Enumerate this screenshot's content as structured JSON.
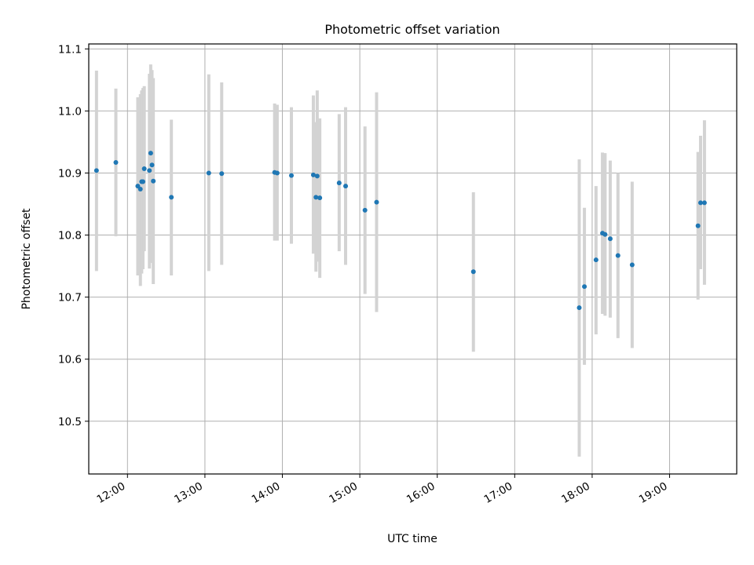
{
  "chart_data": {
    "type": "scatter",
    "title": "Photometric offset variation",
    "xlabel": "UTC time",
    "ylabel": "Photometric offset",
    "grid": true,
    "xlim": [
      "11:30",
      "19:52"
    ],
    "ylim": [
      10.415,
      11.108
    ],
    "x_ticks": [
      "12:00",
      "13:00",
      "14:00",
      "15:00",
      "16:00",
      "17:00",
      "18:00",
      "19:00"
    ],
    "y_ticks": [
      "10.5",
      "10.6",
      "10.7",
      "10.8",
      "10.9",
      "11.0",
      "11.1"
    ],
    "colors": {
      "points": "#1f77b4",
      "error_bars": "#d3d3d3",
      "grid": "#b0b0b0"
    },
    "points": [
      {
        "x": "11:36",
        "y": 10.904,
        "low": 10.742,
        "high": 11.065
      },
      {
        "x": "11:51",
        "y": 10.917,
        "low": 10.798,
        "high": 11.036
      },
      {
        "x": "12:08",
        "y": 10.879,
        "low": 10.735,
        "high": 11.022
      },
      {
        "x": "12:10",
        "y": 10.874,
        "low": 10.718,
        "high": 11.027
      },
      {
        "x": "12:11",
        "y": 10.886,
        "low": 10.738,
        "high": 11.033
      },
      {
        "x": "12:12",
        "y": 10.886,
        "low": 10.745,
        "high": 11.037
      },
      {
        "x": "12:13",
        "y": 10.907,
        "low": 10.774,
        "high": 11.04
      },
      {
        "x": "12:17",
        "y": 10.904,
        "low": 10.746,
        "high": 11.06
      },
      {
        "x": "12:18",
        "y": 10.932,
        "low": 10.79,
        "high": 11.075
      },
      {
        "x": "12:19",
        "y": 10.913,
        "low": 10.755,
        "high": 11.066
      },
      {
        "x": "12:20",
        "y": 10.887,
        "low": 10.721,
        "high": 11.053
      },
      {
        "x": "12:34",
        "y": 10.861,
        "low": 10.735,
        "high": 10.986
      },
      {
        "x": "13:03",
        "y": 10.9,
        "low": 10.742,
        "high": 11.059
      },
      {
        "x": "13:13",
        "y": 10.899,
        "low": 10.752,
        "high": 11.046
      },
      {
        "x": "13:54",
        "y": 10.901,
        "low": 10.791,
        "high": 11.012
      },
      {
        "x": "13:56",
        "y": 10.9,
        "low": 10.791,
        "high": 11.01
      },
      {
        "x": "14:07",
        "y": 10.896,
        "low": 10.786,
        "high": 11.006
      },
      {
        "x": "14:24",
        "y": 10.897,
        "low": 10.77,
        "high": 11.025
      },
      {
        "x": "14:26",
        "y": 10.861,
        "low": 10.741,
        "high": 10.982
      },
      {
        "x": "14:27",
        "y": 10.895,
        "low": 10.757,
        "high": 11.033
      },
      {
        "x": "14:29",
        "y": 10.86,
        "low": 10.731,
        "high": 10.988
      },
      {
        "x": "14:44",
        "y": 10.884,
        "low": 10.774,
        "high": 10.995
      },
      {
        "x": "14:49",
        "y": 10.879,
        "low": 10.752,
        "high": 11.006
      },
      {
        "x": "15:04",
        "y": 10.84,
        "low": 10.705,
        "high": 10.975
      },
      {
        "x": "15:13",
        "y": 10.853,
        "low": 10.676,
        "high": 11.03
      },
      {
        "x": "16:28",
        "y": 10.741,
        "low": 10.612,
        "high": 10.869
      },
      {
        "x": "17:50",
        "y": 10.683,
        "low": 10.443,
        "high": 10.922
      },
      {
        "x": "17:54",
        "y": 10.717,
        "low": 10.591,
        "high": 10.844
      },
      {
        "x": "18:03",
        "y": 10.76,
        "low": 10.64,
        "high": 10.879
      },
      {
        "x": "18:08",
        "y": 10.803,
        "low": 10.673,
        "high": 10.933
      },
      {
        "x": "18:10",
        "y": 10.801,
        "low": 10.67,
        "high": 10.932
      },
      {
        "x": "18:14",
        "y": 10.794,
        "low": 10.667,
        "high": 10.92
      },
      {
        "x": "18:20",
        "y": 10.767,
        "low": 10.634,
        "high": 10.9
      },
      {
        "x": "18:31",
        "y": 10.752,
        "low": 10.618,
        "high": 10.886
      },
      {
        "x": "19:22",
        "y": 10.815,
        "low": 10.696,
        "high": 10.934
      },
      {
        "x": "19:24",
        "y": 10.852,
        "low": 10.745,
        "high": 10.96
      },
      {
        "x": "19:27",
        "y": 10.852,
        "low": 10.72,
        "high": 10.985
      }
    ]
  }
}
